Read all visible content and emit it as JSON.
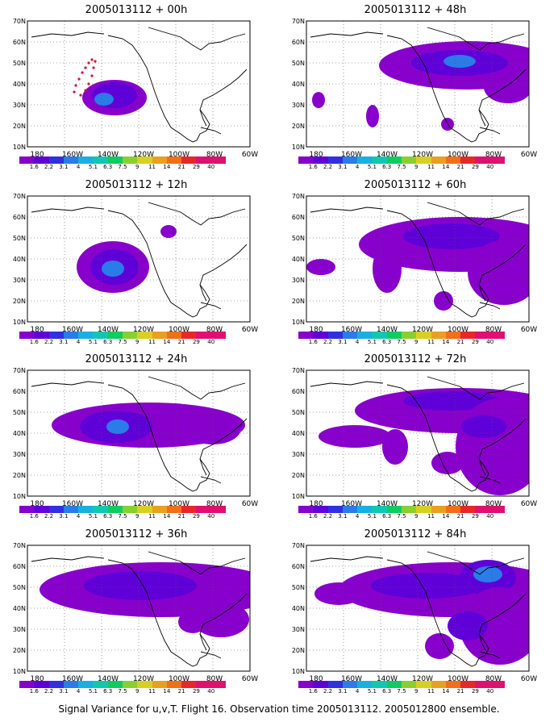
{
  "lat_labels": [
    "70N",
    "60N",
    "50N",
    "40N",
    "30N",
    "20N",
    "10N"
  ],
  "lon_labels": [
    "180",
    "160W",
    "140W",
    "120W",
    "100W",
    "80W",
    "60W"
  ],
  "colorbar": {
    "labels": [
      "1.6",
      "2.2",
      "3.1",
      "4",
      "5.1",
      "6.3",
      "7.5",
      "9",
      "11",
      "14",
      "21",
      "29",
      "40"
    ],
    "colors": [
      "#8800cc",
      "#6000d8",
      "#3030e0",
      "#2a7ce8",
      "#18b0e0",
      "#10c8b0",
      "#10cc60",
      "#88d030",
      "#d8d020",
      "#e8a020",
      "#f07018",
      "#e82828",
      "#e01070"
    ]
  },
  "panels": [
    {
      "title": "2005013112 + 00h",
      "flight_track": true,
      "blobs": [
        {
          "cx": 108,
          "cy": 95,
          "rx": 40,
          "ry": 22,
          "level": 0
        },
        {
          "cx": 108,
          "cy": 92,
          "rx": 28,
          "ry": 16,
          "level": 1
        },
        {
          "cx": 95,
          "cy": 97,
          "rx": 12,
          "ry": 8,
          "level": 3
        }
      ]
    },
    {
      "title": "2005013112 + 48h",
      "blobs": [
        {
          "cx": 200,
          "cy": 55,
          "rx": 110,
          "ry": 30,
          "level": 0
        },
        {
          "cx": 190,
          "cy": 52,
          "rx": 60,
          "ry": 16,
          "level": 1
        },
        {
          "cx": 190,
          "cy": 50,
          "rx": 20,
          "ry": 8,
          "level": 3
        },
        {
          "cx": 250,
          "cy": 82,
          "rx": 30,
          "ry": 20,
          "level": 0
        },
        {
          "cx": 82,
          "cy": 118,
          "rx": 8,
          "ry": 14,
          "level": 0
        },
        {
          "cx": 175,
          "cy": 128,
          "rx": 8,
          "ry": 8,
          "level": 0
        },
        {
          "cx": 15,
          "cy": 98,
          "rx": 8,
          "ry": 10,
          "level": 0
        }
      ]
    },
    {
      "title": "2005013112 + 12h",
      "blobs": [
        {
          "cx": 106,
          "cy": 88,
          "rx": 45,
          "ry": 32,
          "level": 0
        },
        {
          "cx": 108,
          "cy": 88,
          "rx": 30,
          "ry": 22,
          "level": 1
        },
        {
          "cx": 106,
          "cy": 90,
          "rx": 14,
          "ry": 10,
          "level": 3
        },
        {
          "cx": 175,
          "cy": 44,
          "rx": 10,
          "ry": 8,
          "level": 0
        }
      ]
    },
    {
      "title": "2005013112 + 60h",
      "blobs": [
        {
          "cx": 190,
          "cy": 60,
          "rx": 125,
          "ry": 34,
          "level": 0
        },
        {
          "cx": 180,
          "cy": 50,
          "rx": 60,
          "ry": 16,
          "level": 1
        },
        {
          "cx": 245,
          "cy": 95,
          "rx": 45,
          "ry": 40,
          "level": 0
        },
        {
          "cx": 100,
          "cy": 90,
          "rx": 18,
          "ry": 30,
          "level": 0
        },
        {
          "cx": 18,
          "cy": 88,
          "rx": 18,
          "ry": 10,
          "level": 0
        },
        {
          "cx": 170,
          "cy": 130,
          "rx": 12,
          "ry": 12,
          "level": 0
        }
      ]
    },
    {
      "title": "2005013112 + 72h",
      "blobs": [
        {
          "cx": 190,
          "cy": 50,
          "rx": 130,
          "ry": 28,
          "level": 0
        },
        {
          "cx": 180,
          "cy": 38,
          "rx": 60,
          "ry": 12,
          "level": 1
        },
        {
          "cx": 240,
          "cy": 95,
          "rx": 55,
          "ry": 60,
          "level": 0
        },
        {
          "cx": 220,
          "cy": 70,
          "rx": 28,
          "ry": 14,
          "level": 1
        },
        {
          "cx": 60,
          "cy": 82,
          "rx": 45,
          "ry": 14,
          "level": 0
        },
        {
          "cx": 110,
          "cy": 95,
          "rx": 16,
          "ry": 22,
          "level": 0
        },
        {
          "cx": 175,
          "cy": 115,
          "rx": 20,
          "ry": 14,
          "level": 0
        }
      ]
    },
    {
      "title": "2005013112 + 24h",
      "blobs": [
        {
          "cx": 150,
          "cy": 68,
          "rx": 120,
          "ry": 28,
          "level": 0
        },
        {
          "cx": 110,
          "cy": 70,
          "rx": 45,
          "ry": 20,
          "level": 1
        },
        {
          "cx": 112,
          "cy": 70,
          "rx": 14,
          "ry": 9,
          "level": 3
        },
        {
          "cx": 230,
          "cy": 72,
          "rx": 35,
          "ry": 20,
          "level": 0
        }
      ]
    },
    {
      "title": "2005013112 + 36h",
      "blobs": [
        {
          "cx": 165,
          "cy": 55,
          "rx": 150,
          "ry": 34,
          "level": 0
        },
        {
          "cx": 140,
          "cy": 50,
          "rx": 70,
          "ry": 18,
          "level": 1
        },
        {
          "cx": 240,
          "cy": 92,
          "rx": 35,
          "ry": 22,
          "level": 0
        },
        {
          "cx": 205,
          "cy": 95,
          "rx": 18,
          "ry": 14,
          "level": 0
        }
      ]
    },
    {
      "title": "2005013112 + 84h",
      "blobs": [
        {
          "cx": 180,
          "cy": 55,
          "rx": 140,
          "ry": 34,
          "level": 0
        },
        {
          "cx": 150,
          "cy": 50,
          "rx": 70,
          "ry": 16,
          "level": 1
        },
        {
          "cx": 225,
          "cy": 40,
          "rx": 35,
          "ry": 22,
          "level": 1
        },
        {
          "cx": 225,
          "cy": 36,
          "rx": 18,
          "ry": 10,
          "level": 3
        },
        {
          "cx": 240,
          "cy": 100,
          "rx": 50,
          "ry": 48,
          "level": 0
        },
        {
          "cx": 200,
          "cy": 100,
          "rx": 25,
          "ry": 18,
          "level": 1
        },
        {
          "cx": 40,
          "cy": 60,
          "rx": 30,
          "ry": 14,
          "level": 0
        },
        {
          "cx": 165,
          "cy": 125,
          "rx": 18,
          "ry": 16,
          "level": 0
        }
      ]
    }
  ],
  "caption": "Signal Variance for u,v,T. Flight 16. Observation time 2005013112. 2005012800 ensemble."
}
